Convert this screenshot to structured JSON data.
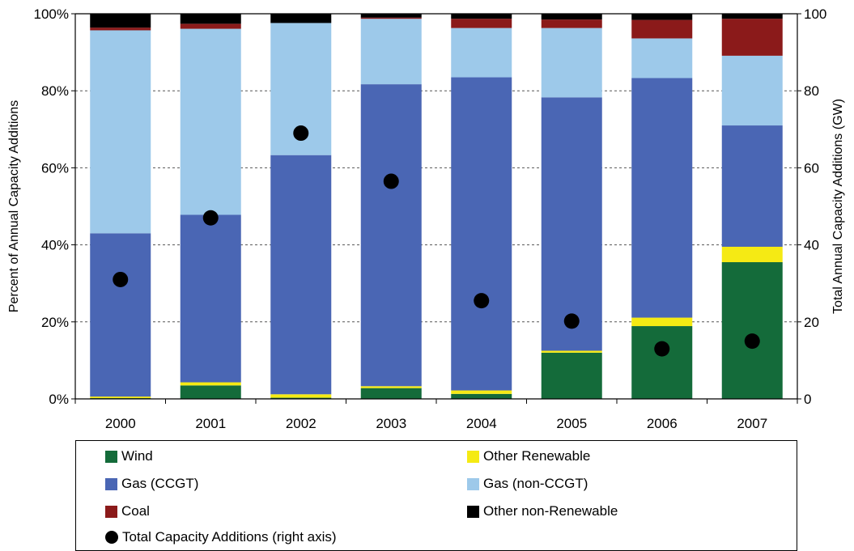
{
  "chart_data": {
    "type": "bar",
    "stacked": true,
    "categories": [
      "2000",
      "2001",
      "2002",
      "2003",
      "2004",
      "2005",
      "2006",
      "2007"
    ],
    "series": [
      {
        "name": "Wind",
        "color": "#146b3a",
        "values": [
          0.2,
          3.5,
          0.3,
          2.8,
          1.3,
          12.0,
          18.9,
          35.5
        ]
      },
      {
        "name": "Other Renewable",
        "color": "#f5ea14",
        "values": [
          0.4,
          0.8,
          0.9,
          0.5,
          0.9,
          0.5,
          2.2,
          4.0
        ]
      },
      {
        "name": "Gas (CCGT)",
        "color": "#4a66b4",
        "values": [
          42.4,
          43.5,
          62.1,
          78.4,
          81.3,
          65.8,
          62.2,
          31.5
        ]
      },
      {
        "name": "Gas (non-CCGT)",
        "color": "#9dc9ea",
        "values": [
          52.7,
          48.3,
          34.3,
          17.0,
          12.8,
          18.0,
          10.3,
          18.1
        ]
      },
      {
        "name": "Coal",
        "color": "#8b1a1a",
        "values": [
          0.7,
          1.3,
          0,
          0.3,
          2.4,
          2.2,
          4.8,
          9.6
        ]
      },
      {
        "name": "Other non-Renewable",
        "color": "#000000",
        "values": [
          3.6,
          2.6,
          2.4,
          1.0,
          1.3,
          1.5,
          1.6,
          1.3
        ]
      }
    ],
    "right_axis_series": {
      "name": "Total Capacity Additions (right axis)",
      "color": "#000000",
      "values": [
        31,
        47,
        69,
        56.5,
        25.5,
        20.2,
        13,
        15
      ]
    },
    "ylabel": "Percent of Annual Capacity Additions",
    "ylabel_right": "Total Annual Capacity Additions (GW)",
    "ylim": [
      0,
      100
    ],
    "ylim_right": [
      0,
      100
    ],
    "yticks": [
      "0%",
      "20%",
      "40%",
      "60%",
      "80%",
      "100%"
    ],
    "yticks_right": [
      "0",
      "20",
      "40",
      "60",
      "80",
      "100"
    ],
    "grid": "dashed horizontal",
    "legend_position": "bottom"
  },
  "legend": [
    {
      "label": "Wind",
      "color": "#146b3a",
      "marker": "square"
    },
    {
      "label": "Other Renewable",
      "color": "#f5ea14",
      "marker": "square"
    },
    {
      "label": "Gas (CCGT)",
      "color": "#4a66b4",
      "marker": "square"
    },
    {
      "label": "Gas (non-CCGT)",
      "color": "#9dc9ea",
      "marker": "square"
    },
    {
      "label": "Coal",
      "color": "#8b1a1a",
      "marker": "square"
    },
    {
      "label": "Other non-Renewable",
      "color": "#000000",
      "marker": "square"
    },
    {
      "label": "Total Capacity Additions (right axis)",
      "color": "#000000",
      "marker": "circle"
    }
  ]
}
